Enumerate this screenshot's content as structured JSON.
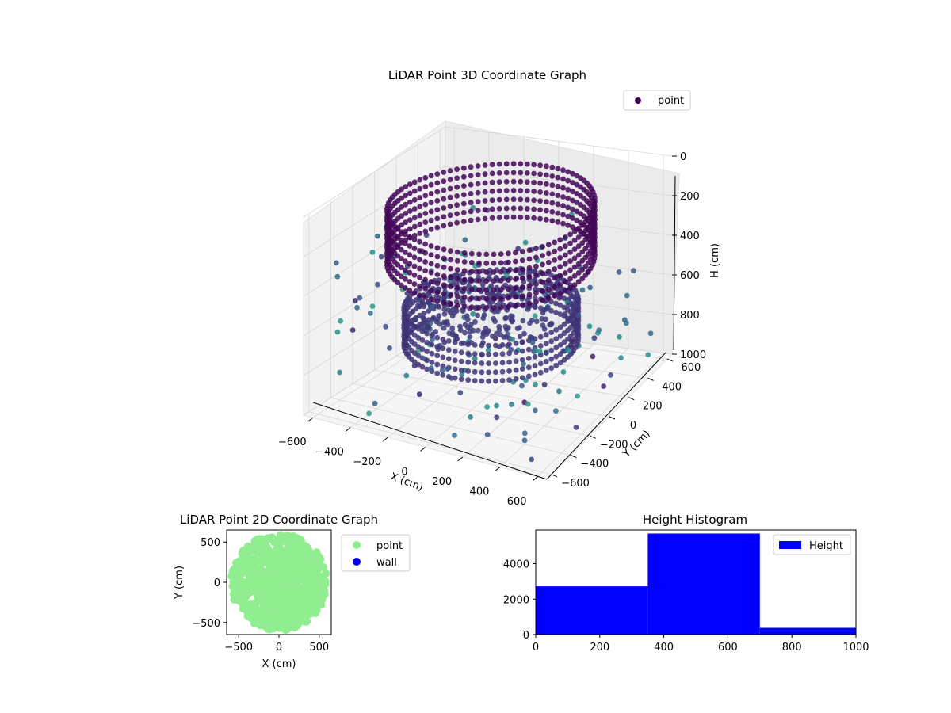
{
  "figure": {
    "background": "#ffffff"
  },
  "chart_data": [
    {
      "type": "scatter",
      "title": "LiDAR Point 3D Coordinate Graph",
      "xlabel": "X (cm)",
      "ylabel": "Y (cm)",
      "zlabel": "H (cm)",
      "projection": "3d",
      "xlim": [
        -650,
        650
      ],
      "ylim": [
        -650,
        650
      ],
      "zlim": [
        1000,
        0
      ],
      "x_ticks": [
        "−600",
        "−400",
        "−200",
        "0",
        "200",
        "400",
        "600"
      ],
      "y_ticks": [
        "−600",
        "−400",
        "−200",
        "0",
        "200",
        "400",
        "600"
      ],
      "z_ticks": [
        "0",
        "200",
        "400",
        "600",
        "800",
        "1000"
      ],
      "z_tick_values": [
        0,
        200,
        400,
        600,
        800,
        1000
      ],
      "colormap": "viridis",
      "legend": {
        "placement": "top-right",
        "entries": [
          {
            "label": "point",
            "color": "#440154"
          }
        ]
      },
      "grid": true,
      "series": [
        {
          "name": "point",
          "note_rings": [
            {
              "shape": "wall_ring",
              "radius": 500,
              "h_top": 50,
              "h_bottom": 350
            },
            {
              "shape": "inner_ring",
              "radius": 400,
              "h_top": 550,
              "h_bottom": 750
            }
          ]
        }
      ]
    },
    {
      "type": "scatter",
      "title": "LiDAR Point 2D Coordinate Graph",
      "xlabel": "X (cm)",
      "ylabel": "Y (cm)",
      "xlim": [
        -650,
        650
      ],
      "ylim": [
        -650,
        650
      ],
      "x_ticks": [
        -500,
        0,
        500
      ],
      "y_ticks": [
        -500,
        0,
        500
      ],
      "legend": {
        "placement": "outside-right",
        "entries": [
          {
            "label": "point",
            "color": "#90ee90"
          },
          {
            "label": "wall",
            "color": "#0000ff"
          }
        ]
      },
      "series": [
        {
          "name": "point",
          "color": "#90ee90",
          "region": "disc",
          "center": [
            0,
            0
          ],
          "radius": 600
        }
      ]
    },
    {
      "type": "bar",
      "title": "Height Histogram",
      "xlim": [
        0,
        1000
      ],
      "ylim": [
        0,
        5900
      ],
      "x_ticks": [
        0,
        200,
        400,
        600,
        800,
        1000
      ],
      "y_ticks": [
        0,
        2000,
        4000
      ],
      "bins": [
        {
          "start": 0,
          "end": 350,
          "count": 2720
        },
        {
          "start": 350,
          "end": 700,
          "count": 5700
        },
        {
          "start": 700,
          "end": 1000,
          "count": 380
        }
      ],
      "color": "#0000ff",
      "legend": {
        "placement": "top-right",
        "entries": [
          {
            "label": "Height",
            "color": "#0000ff"
          }
        ]
      }
    }
  ]
}
